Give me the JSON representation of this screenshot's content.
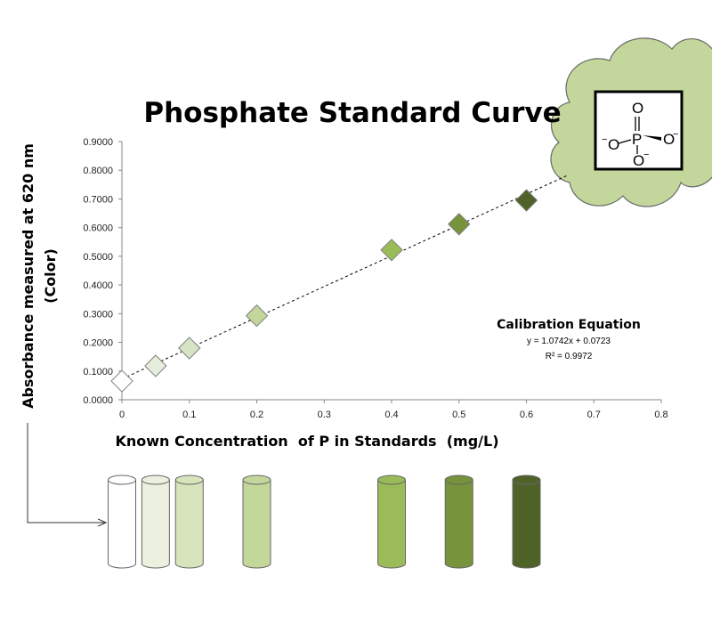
{
  "chart_data": {
    "type": "scatter",
    "title": "Phosphate Standard Curve",
    "xlabel": "Known Concentration  of P in Standards  (mg/L)",
    "ylabel_line1": "Absorbance  measured at 620 nm",
    "ylabel_line2": "(Color)",
    "xlim": [
      0,
      0.8
    ],
    "ylim": [
      0,
      0.9
    ],
    "x_ticks": [
      "0",
      "0.1",
      "0.2",
      "0.3",
      "0.4",
      "0.5",
      "0.6",
      "0.7",
      "0.8"
    ],
    "y_ticks": [
      "0.0000",
      "0.1000",
      "0.2000",
      "0.3000",
      "0.4000",
      "0.5000",
      "0.6000",
      "0.7000",
      "0.8000",
      "0.9000"
    ],
    "grid": false,
    "points": [
      {
        "x": 0,
        "y": 0.065,
        "color": "#ffffff"
      },
      {
        "x": 0.05,
        "y": 0.118,
        "color": "#e5eedb"
      },
      {
        "x": 0.1,
        "y": 0.18,
        "color": "#d6e4c3"
      },
      {
        "x": 0.2,
        "y": 0.293,
        "color": "#c3d69b"
      },
      {
        "x": 0.4,
        "y": 0.522,
        "color": "#9bbb59"
      },
      {
        "x": 0.5,
        "y": 0.612,
        "color": "#77933c"
      },
      {
        "x": 0.6,
        "y": 0.695,
        "color": "#4f6228"
      }
    ],
    "trendline": {
      "slope": 1.0742,
      "intercept": 0.0723
    },
    "annotation": {
      "title": "Calibration Equation",
      "equation": "y = 1.0742x + 0.0723",
      "r2": "R² = 0.9972"
    }
  },
  "molecule": {
    "atoms": {
      "o_top": "O",
      "p": "P",
      "o_left": "O",
      "o_right": "O",
      "o_bottom": "O"
    },
    "charge": "−"
  },
  "colors": {
    "cloud_fill": "#c3d69b",
    "cloud_stroke": "#6a6a6a",
    "marker_stroke": "#7f7f7f",
    "tube_stroke": "#666666"
  },
  "tubes": [
    {
      "x": 0,
      "color": "#ffffff"
    },
    {
      "x": 0.05,
      "color": "#ebf1de"
    },
    {
      "x": 0.1,
      "color": "#d8e4bc"
    },
    {
      "x": 0.2,
      "color": "#c4d79b"
    },
    {
      "x": 0.4,
      "color": "#9bbb59"
    },
    {
      "x": 0.5,
      "color": "#77933c"
    },
    {
      "x": 0.6,
      "color": "#4f6228"
    }
  ]
}
